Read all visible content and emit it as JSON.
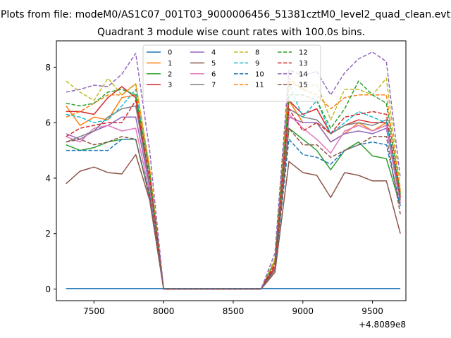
{
  "suptitle": "Plots from file: modeM0/AS1C07_001T03_9000006456_51381cztM0_level2_quad_clean.evt",
  "chart_data": {
    "type": "line",
    "title": "Quadrant 3 module wise count rates with 100.0s bins.",
    "xlabel": "",
    "ylabel": "",
    "offset_text": "+4.8089e8",
    "xlim": [
      7230,
      9740
    ],
    "ylim": [
      -0.42,
      8.95
    ],
    "xticks": [
      7500,
      8000,
      8500,
      9000,
      9500
    ],
    "xtick_labels": [
      "7500",
      "8000",
      "8500",
      "9000",
      "9500"
    ],
    "yticks": [
      0,
      2,
      4,
      6,
      8
    ],
    "ytick_labels": [
      "0",
      "2",
      "4",
      "6",
      "8"
    ],
    "legend_position": "top-center",
    "legend_columns": 4,
    "x": [
      7300,
      7400,
      7500,
      7600,
      7700,
      7800,
      7900,
      8000,
      8100,
      8200,
      8300,
      8400,
      8500,
      8600,
      8700,
      8800,
      8900,
      9000,
      9100,
      9200,
      9300,
      9400,
      9500,
      9600,
      9700
    ],
    "series": [
      {
        "name": "0",
        "color": "#1f77b4",
        "dash": "solid",
        "values": [
          0.02,
          0.02,
          0.02,
          0.02,
          0.02,
          0.02,
          0.02,
          0.02,
          0.02,
          0.02,
          0.02,
          0.02,
          0.02,
          0.02,
          0.02,
          0.02,
          0.02,
          0.02,
          0.02,
          0.02,
          0.02,
          0.02,
          0.02,
          0.02,
          0.02
        ]
      },
      {
        "name": "1",
        "color": "#ff7f0e",
        "dash": "solid",
        "values": [
          6.6,
          5.9,
          6.2,
          6.1,
          6.9,
          7.0,
          3.8,
          0,
          0,
          0,
          0,
          0,
          0,
          0,
          0,
          0.8,
          6.8,
          6.0,
          6.0,
          5.3,
          5.6,
          6.0,
          5.7,
          6.0,
          3.2
        ]
      },
      {
        "name": "2",
        "color": "#2ca02c",
        "dash": "solid",
        "values": [
          5.2,
          5.0,
          5.1,
          5.3,
          5.4,
          5.4,
          3.3,
          0,
          0,
          0,
          0,
          0,
          0,
          0,
          0,
          0.7,
          5.8,
          5.4,
          5.0,
          4.3,
          5.0,
          5.3,
          4.8,
          4.7,
          3.0
        ]
      },
      {
        "name": "3",
        "color": "#d62728",
        "dash": "solid",
        "values": [
          6.4,
          6.4,
          6.3,
          6.9,
          7.3,
          6.9,
          3.8,
          0,
          0,
          0,
          0,
          0,
          0,
          0,
          0,
          0.8,
          6.8,
          6.3,
          6.5,
          5.6,
          5.9,
          6.1,
          6.0,
          6.0,
          3.3
        ]
      },
      {
        "name": "4",
        "color": "#9467bd",
        "dash": "solid",
        "values": [
          5.6,
          5.4,
          5.7,
          5.9,
          6.2,
          6.2,
          3.7,
          0,
          0,
          0,
          0,
          0,
          0,
          0,
          0,
          0.7,
          6.2,
          6.0,
          6.0,
          5.3,
          5.6,
          5.7,
          5.6,
          5.8,
          3.1
        ]
      },
      {
        "name": "5",
        "color": "#8c564b",
        "dash": "solid",
        "values": [
          3.8,
          4.25,
          4.4,
          4.2,
          4.15,
          4.85,
          3.2,
          0,
          0,
          0,
          0,
          0,
          0,
          0,
          0,
          0.6,
          4.6,
          4.2,
          4.1,
          3.3,
          4.2,
          4.1,
          3.9,
          3.9,
          2.0
        ]
      },
      {
        "name": "6",
        "color": "#e377c2",
        "dash": "solid",
        "values": [
          5.5,
          5.3,
          5.8,
          5.9,
          5.7,
          5.8,
          3.5,
          0,
          0,
          0,
          0,
          0,
          0,
          0,
          0,
          0.7,
          6.3,
          5.8,
          5.4,
          4.9,
          5.7,
          5.9,
          5.7,
          5.9,
          3.1
        ]
      },
      {
        "name": "7",
        "color": "#7f7f7f",
        "dash": "solid",
        "values": [
          5.3,
          5.5,
          5.7,
          6.2,
          6.5,
          6.6,
          3.8,
          0,
          0,
          0,
          0,
          0,
          0,
          0,
          0,
          0.7,
          6.5,
          6.2,
          6.1,
          5.6,
          5.9,
          6.0,
          5.9,
          6.1,
          3.2
        ]
      },
      {
        "name": "8",
        "color": "#bcbd22",
        "dash": "dashed",
        "values": [
          7.5,
          7.1,
          6.8,
          7.6,
          7.0,
          7.4,
          4.4,
          0,
          0,
          0,
          0,
          0,
          0,
          0,
          0,
          1.1,
          7.6,
          7.2,
          7.4,
          6.1,
          7.2,
          7.2,
          7.0,
          7.6,
          3.6
        ]
      },
      {
        "name": "9",
        "color": "#17becf",
        "dash": "dashed",
        "values": [
          6.3,
          6.2,
          6.0,
          6.1,
          6.6,
          7.2,
          4.2,
          0,
          0,
          0,
          0,
          0,
          0,
          0,
          0,
          0.9,
          7.4,
          6.2,
          6.8,
          5.6,
          6.0,
          6.4,
          6.2,
          6.0,
          3.4
        ]
      },
      {
        "name": "10",
        "color": "#1f77b4",
        "dash": "dashed",
        "values": [
          5.0,
          5.0,
          5.0,
          5.0,
          5.4,
          5.4,
          3.4,
          0,
          0,
          0,
          0,
          0,
          0,
          0,
          0,
          0.7,
          5.4,
          4.85,
          4.75,
          4.5,
          5.0,
          5.2,
          5.3,
          5.2,
          3.0
        ]
      },
      {
        "name": "11",
        "color": "#ff7f0e",
        "dash": "dashed",
        "values": [
          6.2,
          6.4,
          6.7,
          7.0,
          7.0,
          7.4,
          4.3,
          0,
          0,
          0,
          0,
          0,
          0,
          0,
          0,
          1.0,
          7.5,
          7.2,
          7.0,
          6.5,
          6.9,
          7.0,
          7.0,
          7.0,
          3.5
        ]
      },
      {
        "name": "12",
        "color": "#2ca02c",
        "dash": "dashed",
        "values": [
          6.7,
          6.6,
          6.7,
          7.1,
          7.2,
          7.0,
          4.2,
          0,
          0,
          0,
          0,
          0,
          0,
          0,
          0,
          1.0,
          7.0,
          7.0,
          6.8,
          5.8,
          6.5,
          7.5,
          7.0,
          6.7,
          3.4
        ]
      },
      {
        "name": "13",
        "color": "#d62728",
        "dash": "dashed",
        "values": [
          5.5,
          5.8,
          5.9,
          6.0,
          6.0,
          6.8,
          4.0,
          0,
          0,
          0,
          0,
          0,
          0,
          0,
          0,
          0.9,
          6.5,
          5.7,
          6.0,
          5.6,
          6.2,
          6.3,
          6.4,
          6.3,
          3.3
        ]
      },
      {
        "name": "14",
        "color": "#9467bd",
        "dash": "dashed",
        "values": [
          7.1,
          7.2,
          7.35,
          7.3,
          7.75,
          8.5,
          5.0,
          0,
          0,
          0,
          0,
          0,
          0,
          0,
          0,
          1.3,
          7.9,
          7.7,
          7.85,
          7.0,
          7.8,
          8.3,
          8.55,
          8.2,
          4.0
        ]
      },
      {
        "name": "15",
        "color": "#8c564b",
        "dash": "dashed",
        "values": [
          5.3,
          5.4,
          5.2,
          5.3,
          5.5,
          5.4,
          3.3,
          0,
          0,
          0,
          0,
          0,
          0,
          0,
          0,
          0.7,
          5.8,
          5.2,
          5.2,
          4.75,
          5.0,
          5.2,
          5.5,
          5.5,
          2.7
        ]
      }
    ]
  }
}
